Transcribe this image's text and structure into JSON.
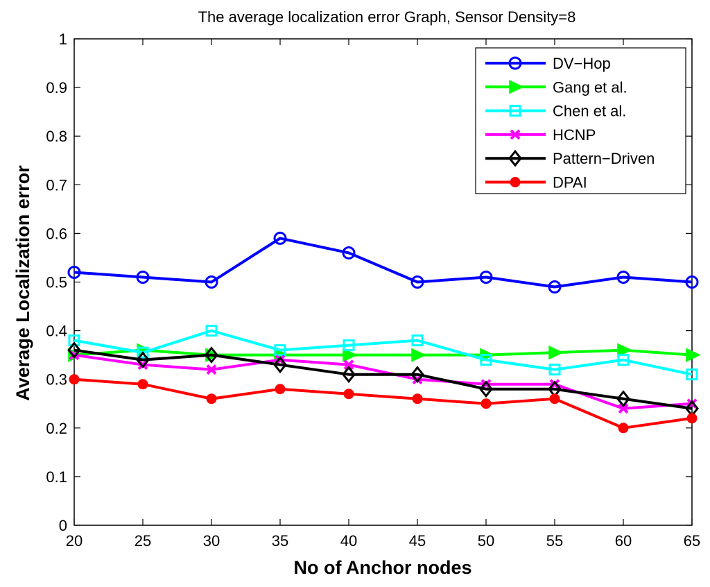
{
  "chart_data": {
    "type": "line",
    "title": "The average localization error Graph, Sensor Density=8",
    "xlabel": "No of Anchor nodes",
    "ylabel": "Average Localization error",
    "x": [
      20,
      25,
      30,
      35,
      40,
      45,
      50,
      55,
      60,
      65
    ],
    "xlim": [
      20,
      65
    ],
    "ylim": [
      0,
      1
    ],
    "xticks": [
      "20",
      "25",
      "30",
      "35",
      "40",
      "45",
      "50",
      "55",
      "60",
      "65"
    ],
    "yticks": [
      "0",
      "0.1",
      "0.2",
      "0.3",
      "0.4",
      "0.5",
      "0.6",
      "0.7",
      "0.8",
      "0.9",
      "1"
    ],
    "grid": false,
    "legend_position": "top-right",
    "series": [
      {
        "name": "DV−Hop",
        "color": "#0000ff",
        "marker": "circle-open",
        "values": [
          0.52,
          0.51,
          0.5,
          0.59,
          0.56,
          0.5,
          0.51,
          0.49,
          0.51,
          0.5
        ]
      },
      {
        "name": "Gang et al.",
        "color": "#00ff00",
        "marker": "triangle-right",
        "values": [
          0.35,
          0.36,
          0.35,
          0.35,
          0.35,
          0.35,
          0.35,
          0.355,
          0.36,
          0.35
        ]
      },
      {
        "name": "Chen et al.",
        "color": "#00ffff",
        "marker": "square-open",
        "values": [
          0.38,
          0.355,
          0.4,
          0.36,
          0.37,
          0.38,
          0.34,
          0.32,
          0.34,
          0.31
        ]
      },
      {
        "name": "HCNP",
        "color": "#ff00ff",
        "marker": "x",
        "values": [
          0.35,
          0.33,
          0.32,
          0.34,
          0.33,
          0.3,
          0.29,
          0.29,
          0.24,
          0.25
        ]
      },
      {
        "name": "Pattern−Driven",
        "color": "#000000",
        "marker": "diamond-open",
        "values": [
          0.36,
          0.34,
          0.35,
          0.33,
          0.31,
          0.31,
          0.28,
          0.28,
          0.26,
          0.24
        ]
      },
      {
        "name": "DPAI",
        "color": "#ff0000",
        "marker": "circle-filled",
        "values": [
          0.3,
          0.29,
          0.26,
          0.28,
          0.27,
          0.26,
          0.25,
          0.26,
          0.2,
          0.22
        ]
      }
    ]
  }
}
